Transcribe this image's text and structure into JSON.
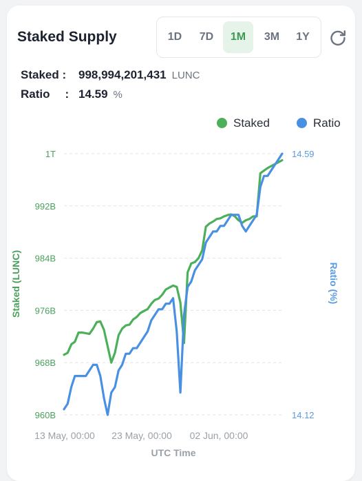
{
  "header": {
    "title": "Staked Supply",
    "tabs": [
      {
        "label": "1D",
        "active": false
      },
      {
        "label": "7D",
        "active": false
      },
      {
        "label": "1M",
        "active": true
      },
      {
        "label": "3M",
        "active": false
      },
      {
        "label": "1Y",
        "active": false
      }
    ],
    "refresh_icon": "refresh-icon"
  },
  "summary": {
    "staked_label": "Staked",
    "staked_sep": ":",
    "staked_value": "998,994,201,431",
    "staked_unit": "LUNC",
    "ratio_label": "Ratio",
    "ratio_sep": ":",
    "ratio_value": "14.59",
    "ratio_unit": "%"
  },
  "legend": {
    "staked": "Staked",
    "ratio": "Ratio"
  },
  "colors": {
    "staked": "#4caf5a",
    "ratio": "#4a90e2",
    "active_tab_bg": "#e5f3e8",
    "active_tab_text": "#3d9a52"
  },
  "chart_data": {
    "type": "line",
    "xlabel": "UTC Time",
    "ylabel_left": "Staked (LUNC)",
    "ylabel_right": "Ratio (%)",
    "left_ticks": [
      "1T",
      "992B",
      "984B",
      "976B",
      "968B",
      "960B"
    ],
    "right_ticks": [
      "14.59",
      "14.12"
    ],
    "x_ticks": [
      "13 May, 00:00",
      "23 May, 00:00",
      "02 Jun, 00:00"
    ],
    "ylim_left": [
      960,
      1000
    ],
    "ylim_right": [
      14.12,
      14.59
    ],
    "grid": true,
    "legend_position": "top-right",
    "series": [
      {
        "name": "Staked",
        "axis": "left",
        "unit": "B LUNC",
        "x": [
          0,
          0.5,
          1,
          1.5,
          2,
          2.5,
          3,
          3.5,
          4,
          4.5,
          5,
          5.5,
          6,
          6.5,
          7,
          7.5,
          8,
          8.5,
          9,
          9.5,
          10,
          10.5,
          11,
          11.5,
          12,
          12.5,
          13,
          13.5,
          14,
          14.5,
          15,
          15.5,
          16,
          16.5,
          17,
          17.5,
          18,
          18.5,
          19,
          19.5,
          20,
          20.5,
          21,
          21.5,
          22,
          22.5,
          23,
          23.5,
          24,
          24.5,
          25,
          25.5,
          26,
          26.5,
          27,
          27.5,
          28,
          28.5,
          29,
          29.5,
          30
        ],
        "values": [
          969.2,
          969.5,
          970.8,
          971.2,
          972.6,
          972.6,
          972.5,
          972.4,
          973.2,
          974.2,
          974.3,
          973.0,
          970.5,
          968.0,
          969.5,
          972.2,
          973.2,
          973.7,
          973.8,
          974.6,
          975.0,
          975.6,
          975.9,
          976.2,
          977.0,
          977.6,
          977.8,
          978.4,
          979.2,
          979.5,
          979.8,
          979.6,
          977.2,
          971.0,
          981.8,
          983.2,
          983.4,
          984.0,
          985.2,
          988.8,
          989.3,
          989.6,
          990.0,
          990.1,
          990.4,
          990.6,
          990.7,
          990.4,
          989.8,
          989.4,
          989.8,
          990.0,
          990.4,
          990.4,
          997.0,
          997.4,
          997.8,
          998.1,
          998.4,
          998.7,
          999.0
        ]
      },
      {
        "name": "Ratio",
        "axis": "right",
        "unit": "%",
        "x": [
          0,
          0.5,
          1,
          1.5,
          2,
          2.5,
          3,
          3.5,
          4,
          4.5,
          5,
          5.5,
          6,
          6.5,
          7,
          7.5,
          8,
          8.5,
          9,
          9.5,
          10,
          10.5,
          11,
          11.5,
          12,
          12.5,
          13,
          13.5,
          14,
          14.5,
          15,
          15.5,
          16,
          16.5,
          17,
          17.5,
          18,
          18.5,
          19,
          19.5,
          20,
          20.5,
          21,
          21.5,
          22,
          22.5,
          23,
          23.5,
          24,
          24.5,
          25,
          25.5,
          26,
          26.5,
          27,
          27.5,
          28,
          28.5,
          29,
          29.5,
          30
        ],
        "values": [
          14.13,
          14.14,
          14.17,
          14.19,
          14.19,
          14.19,
          14.19,
          14.2,
          14.21,
          14.21,
          14.19,
          14.15,
          14.12,
          14.16,
          14.17,
          14.2,
          14.21,
          14.23,
          14.23,
          14.24,
          14.24,
          14.25,
          14.26,
          14.27,
          14.29,
          14.3,
          14.31,
          14.31,
          14.32,
          14.32,
          14.33,
          14.27,
          14.16,
          14.3,
          14.35,
          14.36,
          14.38,
          14.39,
          14.4,
          14.43,
          14.44,
          14.45,
          14.45,
          14.46,
          14.46,
          14.47,
          14.48,
          14.48,
          14.48,
          14.46,
          14.45,
          14.46,
          14.47,
          14.48,
          14.53,
          14.55,
          14.55,
          14.56,
          14.57,
          14.58,
          14.59
        ]
      }
    ]
  }
}
